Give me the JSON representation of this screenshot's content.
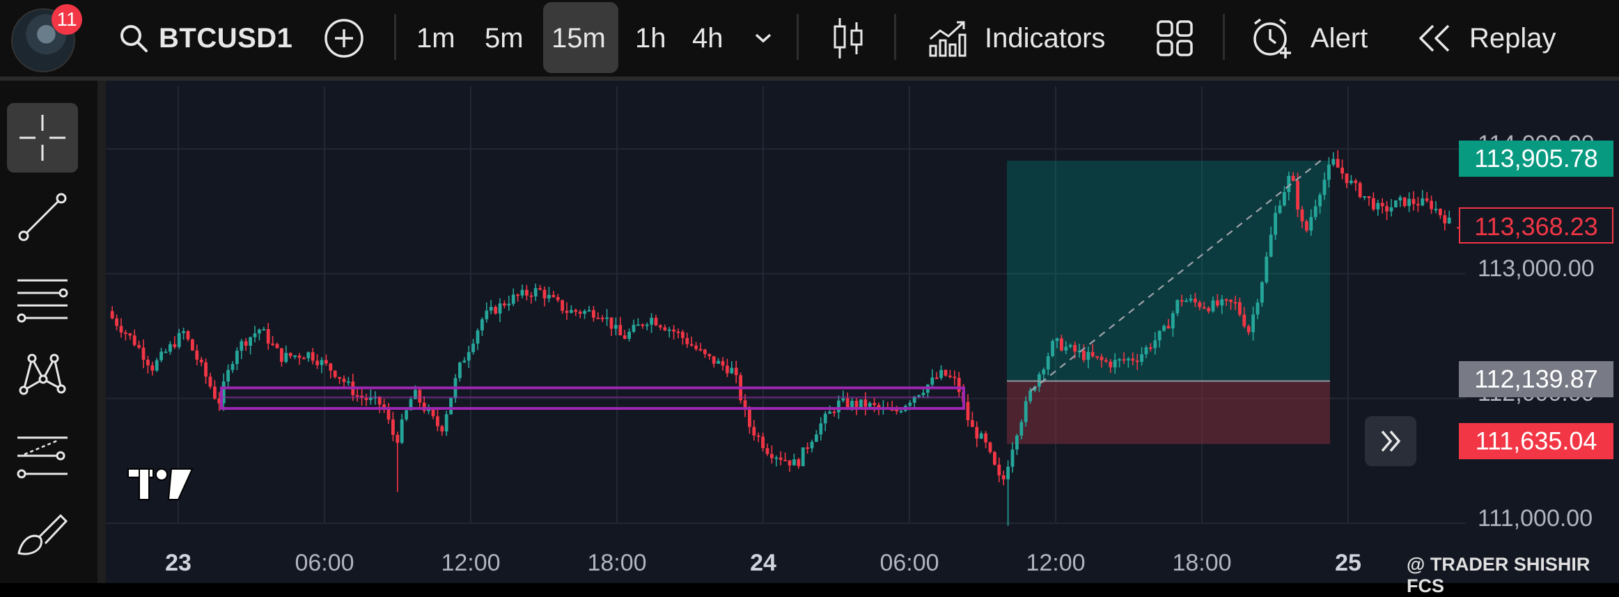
{
  "header": {
    "notification_count": "11",
    "symbol": "BTCUSD1",
    "timeframes": [
      "1m",
      "5m",
      "15m",
      "1h",
      "4h"
    ],
    "active_timeframe": "15m",
    "indicators_label": "Indicators",
    "alert_label": "Alert",
    "replay_label": "Replay"
  },
  "left_toolbar": {
    "tools": [
      "crosshair-icon",
      "trend-line-icon",
      "horizontal-lines-icon",
      "pattern-icon",
      "forecast-icon",
      "brush-icon"
    ]
  },
  "chart": {
    "price_axis": [
      "114,000.00",
      "113,000.00",
      "112,000.00",
      "111,000.00"
    ],
    "price_labels": {
      "target": "113,905.78",
      "current": "113,368.23",
      "entry": "112,139.87",
      "stop": "111,635.04"
    },
    "time_axis": [
      "23",
      "06:00",
      "12:00",
      "18:00",
      "24",
      "06:00",
      "12:00",
      "18:00",
      "25"
    ],
    "watermark": "@ TRADER SHISHIR FCS",
    "colors": {
      "up": "#26a69a",
      "down": "#f23645",
      "zone": "#9c27b0",
      "profit": "#00897b",
      "loss": "#7b2d3a"
    }
  }
}
